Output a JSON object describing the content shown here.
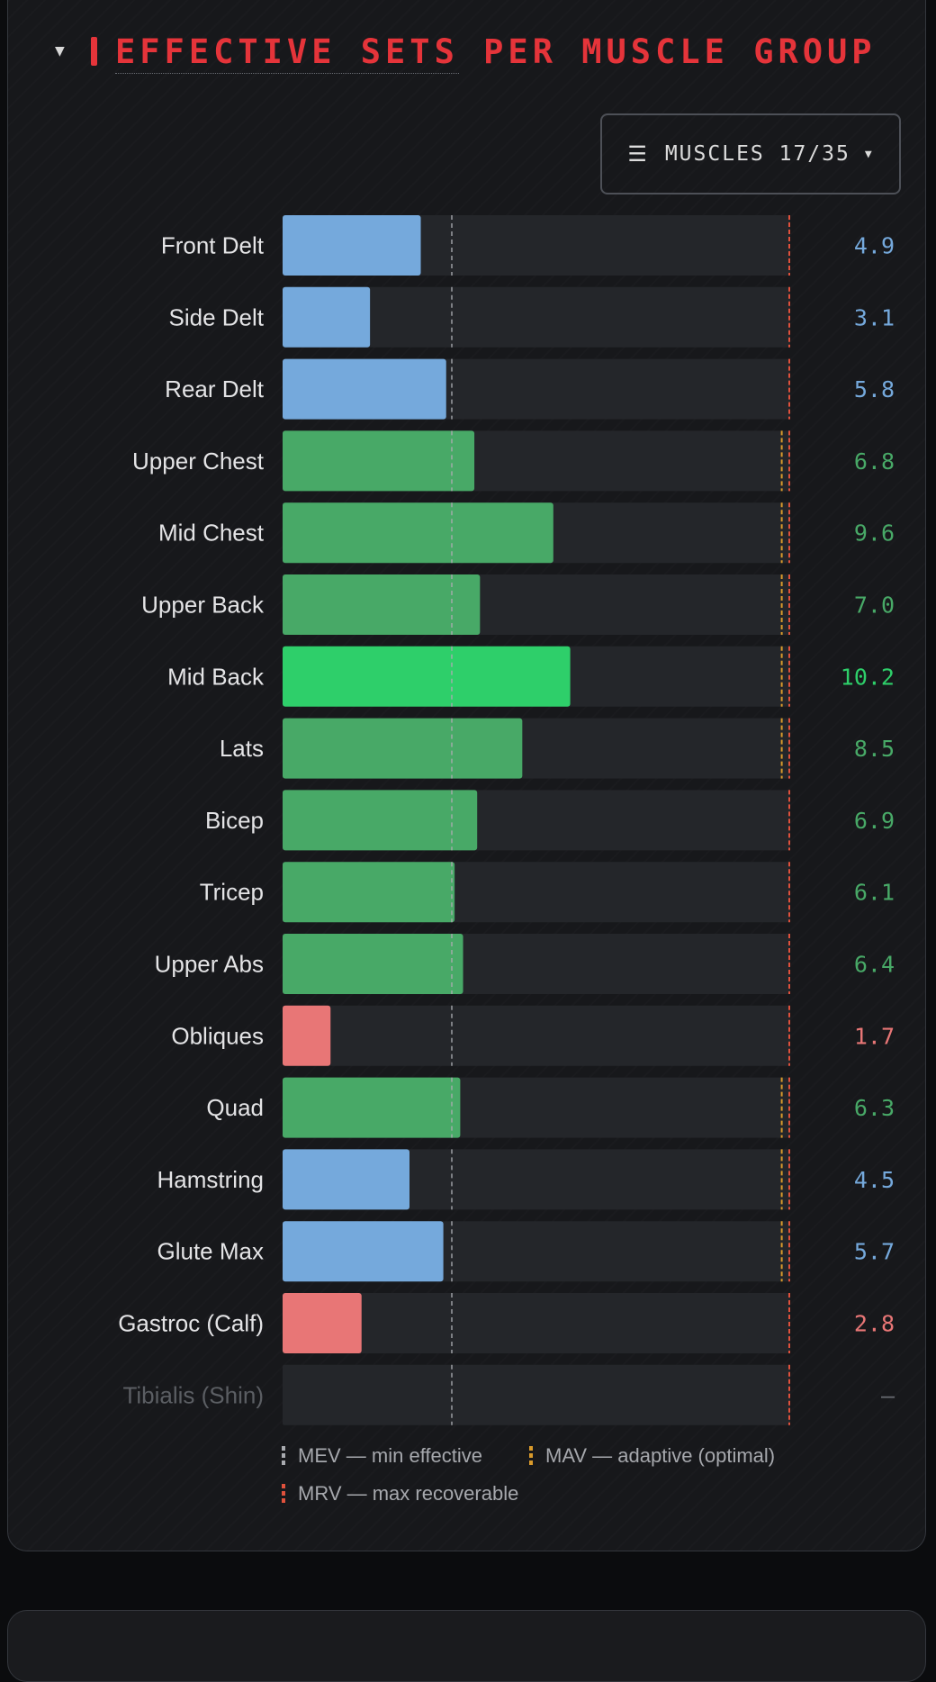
{
  "header": {
    "title_part1": "EFFECTIVE SETS",
    "title_part2": "PER MUSCLE GROUP",
    "collapse_icon": "caret-down-icon"
  },
  "filter": {
    "label": "MUSCLES 17/35",
    "icon": "menu-icon",
    "dropdown_icon": "caret-down-icon"
  },
  "colors": {
    "blue": "#75a9dc",
    "green": "#48a967",
    "bright_green": "#2ecf6a",
    "red": "#e87676",
    "mev": "#a9abb0",
    "mav": "#d99a2b",
    "mrv": "#e0513c",
    "accent": "#e5343a"
  },
  "chart_data": {
    "type": "bar",
    "orientation": "horizontal",
    "xlim": [
      0,
      18
    ],
    "categories": [
      "Front Delt",
      "Side Delt",
      "Rear Delt",
      "Upper Chest",
      "Mid Chest",
      "Upper Back",
      "Mid Back",
      "Lats",
      "Bicep",
      "Tricep",
      "Upper Abs",
      "Obliques",
      "Quad",
      "Hamstring",
      "Glute Max",
      "Gastroc (Calf)",
      "Tibialis (Shin)"
    ],
    "values": [
      4.9,
      3.1,
      5.8,
      6.8,
      9.6,
      7.0,
      10.2,
      8.5,
      6.9,
      6.1,
      6.4,
      1.7,
      6.3,
      4.5,
      5.7,
      2.8,
      null
    ],
    "value_labels": [
      "4.9",
      "3.1",
      "5.8",
      "6.8",
      "9.6",
      "7.0",
      "10.2",
      "8.5",
      "6.9",
      "6.1",
      "6.4",
      "1.7",
      "6.3",
      "4.5",
      "5.7",
      "2.8",
      "—"
    ],
    "bar_colors": [
      "blue",
      "blue",
      "blue",
      "green",
      "green",
      "green",
      "bright_green",
      "green",
      "green",
      "green",
      "green",
      "red",
      "green",
      "blue",
      "blue",
      "red",
      "none"
    ],
    "mev": 6,
    "mav": [
      null,
      null,
      null,
      17.7,
      17.7,
      17.7,
      17.7,
      17.7,
      null,
      null,
      null,
      null,
      17.7,
      17.7,
      17.7,
      null,
      null
    ],
    "mrv": 18,
    "legend": {
      "mev": "MEV — min effective",
      "mav": "MAV — adaptive (optimal)",
      "mrv": "MRV — max recoverable"
    }
  }
}
